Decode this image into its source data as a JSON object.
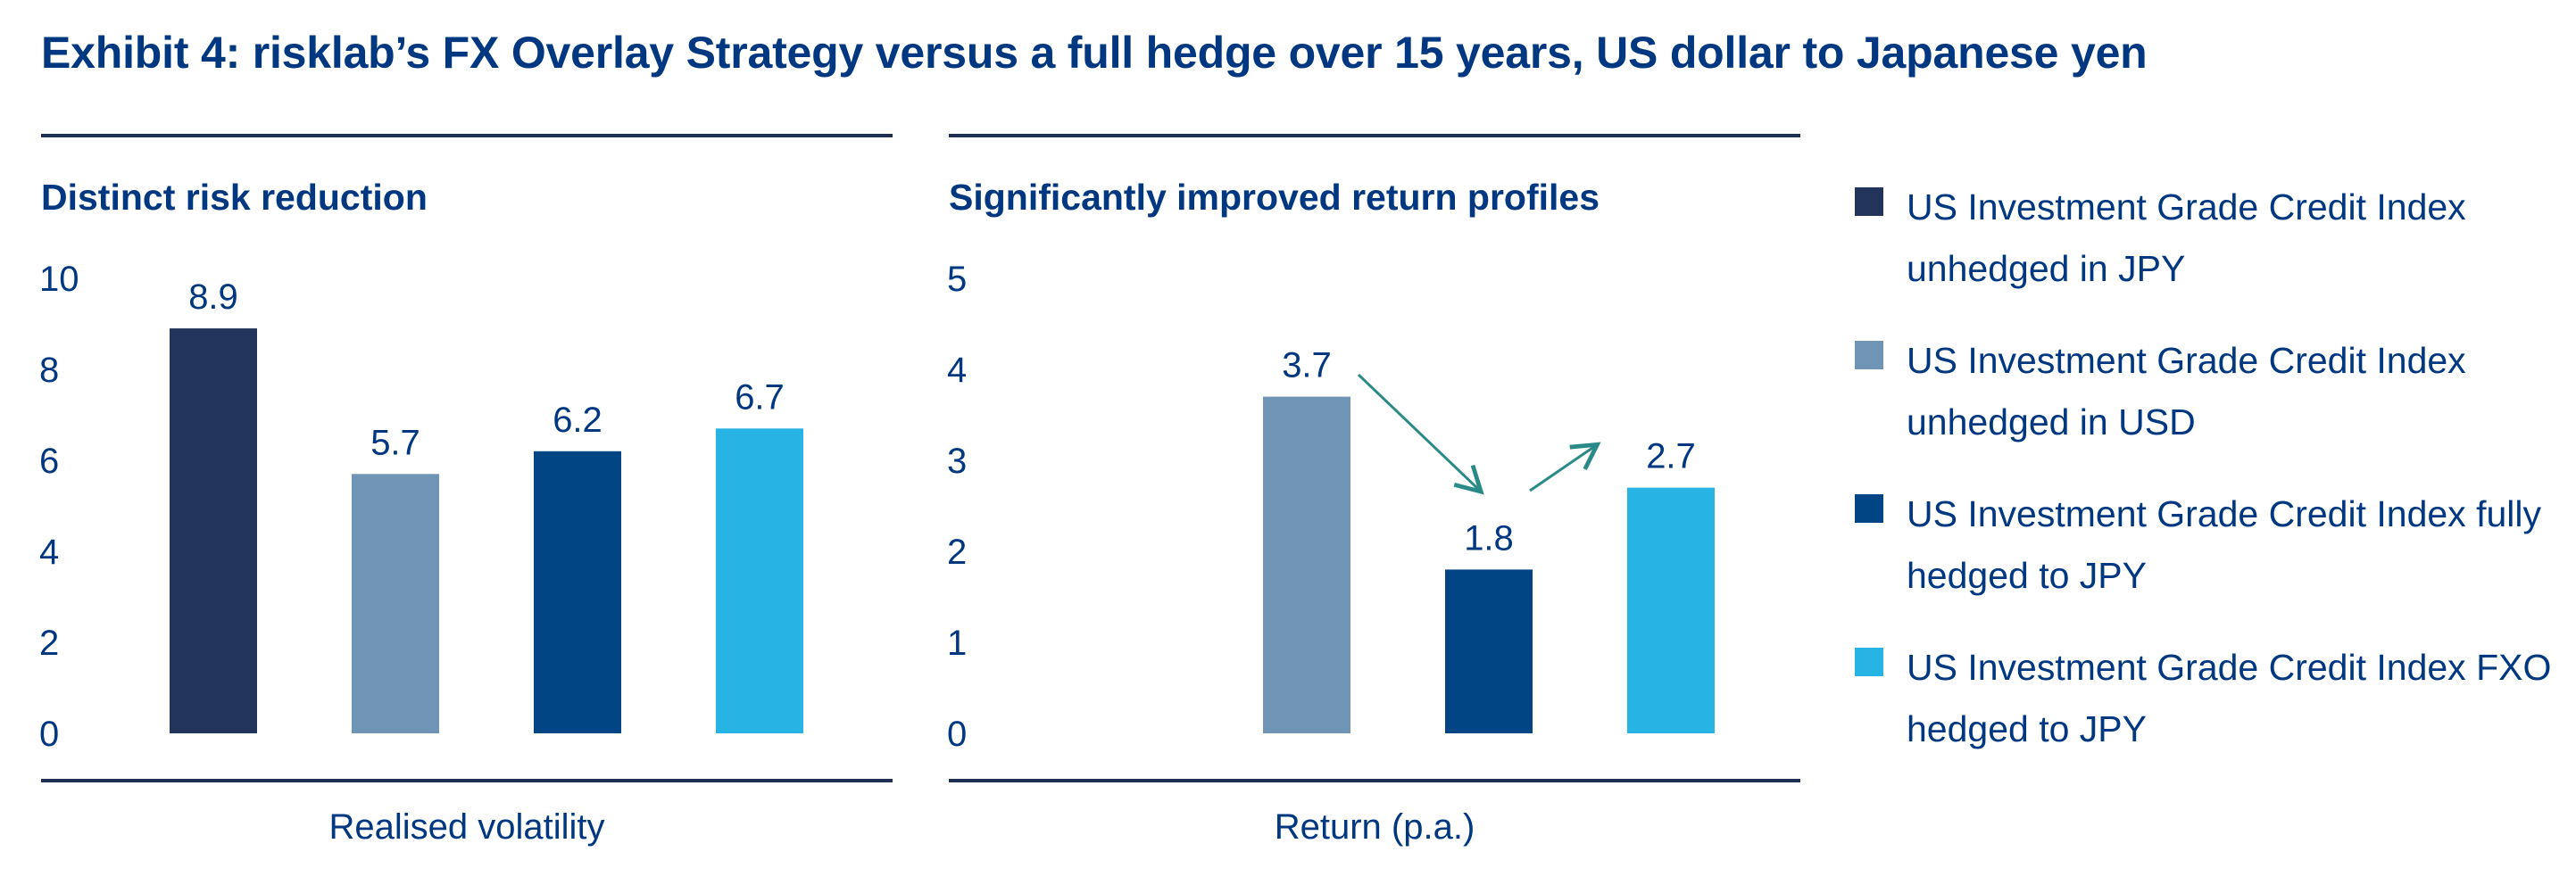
{
  "title": "Exhibit 4: risklab’s FX Overlay Strategy versus a full hedge over 15 years, US dollar to Japanese yen",
  "colors": {
    "text": "#003781",
    "rule": "#1f2f52",
    "arrow": "#2a8a87"
  },
  "legend": [
    {
      "label": "US Investment Grade Credit Index unhedged in JPY",
      "color": "#223459"
    },
    {
      "label": "US Investment Grade Credit Index unhedged in USD",
      "color": "#7094b6"
    },
    {
      "label": "US Investment Grade Credit Index fully hedged to JPY",
      "color": "#014585"
    },
    {
      "label": "US Investment Grade Credit Index FXO hedged to JPY",
      "color": "#27b4e5"
    }
  ],
  "chart_data": [
    {
      "type": "bar",
      "title": "Distinct risk reduction",
      "xlabel": "Realised volatility",
      "ylabel": "",
      "ylim": [
        0,
        10
      ],
      "yticks": [
        "0",
        "2",
        "4",
        "6",
        "8",
        "10"
      ],
      "grid": false,
      "series": [
        {
          "name": "US Investment Grade Credit Index unhedged in JPY",
          "value": 8.9,
          "label": "8.9",
          "color": "#223459"
        },
        {
          "name": "US Investment Grade Credit Index unhedged in USD",
          "value": 5.7,
          "label": "5.7",
          "color": "#7094b6"
        },
        {
          "name": "US Investment Grade Credit Index fully hedged to JPY",
          "value": 6.2,
          "label": "6.2",
          "color": "#014585"
        },
        {
          "name": "US Investment Grade Credit Index FXO hedged to JPY",
          "value": 6.7,
          "label": "6.7",
          "color": "#27b4e5"
        }
      ]
    },
    {
      "type": "bar",
      "title": "Significantly improved return profiles",
      "xlabel": "Return (p.a.)",
      "ylabel": "",
      "ylim": [
        0,
        5
      ],
      "yticks": [
        "0",
        "1",
        "2",
        "3",
        "4",
        "5"
      ],
      "grid": false,
      "series": [
        {
          "name": "US Investment Grade Credit Index unhedged in JPY",
          "value": null,
          "label": "",
          "color": "#223459"
        },
        {
          "name": "US Investment Grade Credit Index unhedged in USD",
          "value": 3.7,
          "label": "3.7",
          "color": "#7094b6"
        },
        {
          "name": "US Investment Grade Credit Index fully hedged to JPY",
          "value": 1.8,
          "label": "1.8",
          "color": "#014585"
        },
        {
          "name": "US Investment Grade Credit Index FXO hedged to JPY",
          "value": 2.7,
          "label": "2.7",
          "color": "#27b4e5"
        }
      ],
      "annotations": [
        "arrow from 3.7 down to 1.8",
        "arrow from 1.8 up to 2.7"
      ]
    }
  ]
}
